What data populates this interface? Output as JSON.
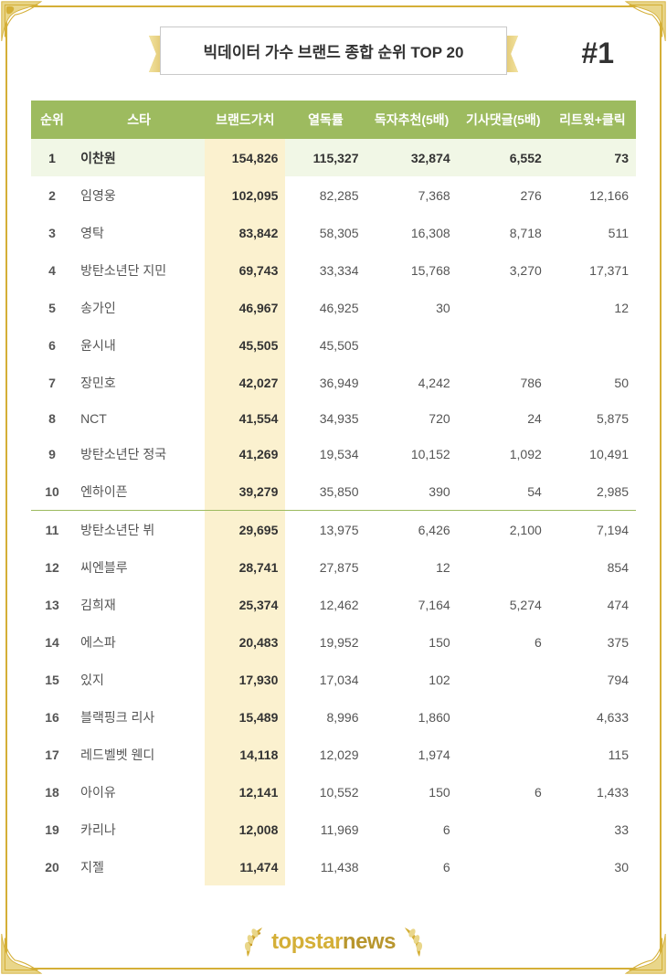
{
  "title": "빅데이터 가수 브랜드 종합 순위 TOP 20",
  "hash": "#1",
  "columns": [
    "순위",
    "스타",
    "브랜드가치",
    "열독률",
    "독자추천(5배)",
    "기사댓글(5배)",
    "리트윗+클릭"
  ],
  "rows": [
    {
      "rank": "1",
      "name": "이찬원",
      "brand": "154,826",
      "c1": "115,327",
      "c2": "32,874",
      "c3": "6,552",
      "c4": "73"
    },
    {
      "rank": "2",
      "name": "임영웅",
      "brand": "102,095",
      "c1": "82,285",
      "c2": "7,368",
      "c3": "276",
      "c4": "12,166"
    },
    {
      "rank": "3",
      "name": "영탁",
      "brand": "83,842",
      "c1": "58,305",
      "c2": "16,308",
      "c3": "8,718",
      "c4": "511"
    },
    {
      "rank": "4",
      "name": "방탄소년단 지민",
      "brand": "69,743",
      "c1": "33,334",
      "c2": "15,768",
      "c3": "3,270",
      "c4": "17,371"
    },
    {
      "rank": "5",
      "name": "송가인",
      "brand": "46,967",
      "c1": "46,925",
      "c2": "30",
      "c3": "",
      "c4": "12"
    },
    {
      "rank": "6",
      "name": "윤시내",
      "brand": "45,505",
      "c1": "45,505",
      "c2": "",
      "c3": "",
      "c4": ""
    },
    {
      "rank": "7",
      "name": "장민호",
      "brand": "42,027",
      "c1": "36,949",
      "c2": "4,242",
      "c3": "786",
      "c4": "50"
    },
    {
      "rank": "8",
      "name": "NCT",
      "brand": "41,554",
      "c1": "34,935",
      "c2": "720",
      "c3": "24",
      "c4": "5,875"
    },
    {
      "rank": "9",
      "name": "방탄소년단 정국",
      "brand": "41,269",
      "c1": "19,534",
      "c2": "10,152",
      "c3": "1,092",
      "c4": "10,491"
    },
    {
      "rank": "10",
      "name": "엔하이픈",
      "brand": "39,279",
      "c1": "35,850",
      "c2": "390",
      "c3": "54",
      "c4": "2,985"
    },
    {
      "rank": "11",
      "name": "방탄소년단 뷔",
      "brand": "29,695",
      "c1": "13,975",
      "c2": "6,426",
      "c3": "2,100",
      "c4": "7,194"
    },
    {
      "rank": "12",
      "name": "씨엔블루",
      "brand": "28,741",
      "c1": "27,875",
      "c2": "12",
      "c3": "",
      "c4": "854"
    },
    {
      "rank": "13",
      "name": "김희재",
      "brand": "25,374",
      "c1": "12,462",
      "c2": "7,164",
      "c3": "5,274",
      "c4": "474"
    },
    {
      "rank": "14",
      "name": "에스파",
      "brand": "20,483",
      "c1": "19,952",
      "c2": "150",
      "c3": "6",
      "c4": "375"
    },
    {
      "rank": "15",
      "name": "있지",
      "brand": "17,930",
      "c1": "17,034",
      "c2": "102",
      "c3": "",
      "c4": "794"
    },
    {
      "rank": "16",
      "name": "블랙핑크 리사",
      "brand": "15,489",
      "c1": "8,996",
      "c2": "1,860",
      "c3": "",
      "c4": "4,633"
    },
    {
      "rank": "17",
      "name": "레드벨벳 웬디",
      "brand": "14,118",
      "c1": "12,029",
      "c2": "1,974",
      "c3": "",
      "c4": "115"
    },
    {
      "rank": "18",
      "name": "아이유",
      "brand": "12,141",
      "c1": "10,552",
      "c2": "150",
      "c3": "6",
      "c4": "1,433"
    },
    {
      "rank": "19",
      "name": "카리나",
      "brand": "12,008",
      "c1": "11,969",
      "c2": "6",
      "c3": "",
      "c4": "33"
    },
    {
      "rank": "20",
      "name": "지젤",
      "brand": "11,474",
      "c1": "11,438",
      "c2": "6",
      "c3": "",
      "c4": "30"
    }
  ],
  "logo_top": "topstar",
  "logo_news": "news",
  "colors": {
    "header_bg": "#9dbb5f",
    "brand_col_bg": "#fbf1cf",
    "toprow_bg": "#f1f7e6",
    "gold": "#d4af37",
    "border": "#c9c9c9"
  }
}
